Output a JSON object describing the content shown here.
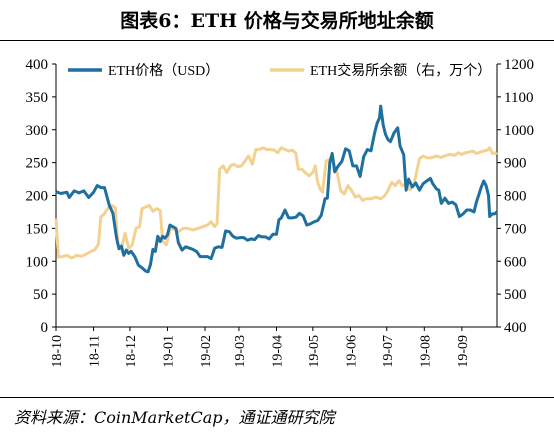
{
  "figure": {
    "title": "图表6：ETH 价格与交易所地址余额",
    "source": "资料来源：CoinMarketCap，通证通研究院"
  },
  "chart_data": {
    "type": "line",
    "title": "图表6：ETH 价格与交易所地址余额",
    "x_ticks": [
      "18-10",
      "18-11",
      "18-12",
      "19-01",
      "19-02",
      "19-03",
      "19-04",
      "19-05",
      "19-06",
      "19-07",
      "19-08",
      "19-09"
    ],
    "x_range": [
      "2018-10-01",
      "2019-09-30"
    ],
    "y_left": {
      "range": [
        0,
        400
      ],
      "ticks": [
        0,
        50,
        100,
        150,
        200,
        250,
        300,
        350,
        400
      ]
    },
    "y_right": {
      "range": [
        400,
        1200
      ],
      "ticks": [
        400,
        500,
        600,
        700,
        800,
        900,
        1000,
        1100,
        1200
      ]
    },
    "grid": false,
    "legend": "top",
    "series": [
      {
        "name": "ETH价格（USD）",
        "axis": "left",
        "color": "#1f6f9f",
        "points": [
          [
            "2018-10-01",
            206
          ],
          [
            "2018-10-05",
            203
          ],
          [
            "2018-10-10",
            205
          ],
          [
            "2018-10-12",
            197
          ],
          [
            "2018-10-16",
            207
          ],
          [
            "2018-10-20",
            204
          ],
          [
            "2018-10-24",
            207
          ],
          [
            "2018-10-28",
            197
          ],
          [
            "2018-11-01",
            205
          ],
          [
            "2018-11-04",
            215
          ],
          [
            "2018-11-07",
            212
          ],
          [
            "2018-11-10",
            212
          ],
          [
            "2018-11-14",
            185
          ],
          [
            "2018-11-17",
            173
          ],
          [
            "2018-11-20",
            135
          ],
          [
            "2018-11-22",
            119
          ],
          [
            "2018-11-24",
            123
          ],
          [
            "2018-11-26",
            109
          ],
          [
            "2018-11-28",
            117
          ],
          [
            "2018-11-30",
            112
          ],
          [
            "2018-12-02",
            115
          ],
          [
            "2018-12-05",
            107
          ],
          [
            "2018-12-08",
            94
          ],
          [
            "2018-12-11",
            90
          ],
          [
            "2018-12-14",
            85
          ],
          [
            "2018-12-16",
            84
          ],
          [
            "2018-12-18",
            95
          ],
          [
            "2018-12-20",
            118
          ],
          [
            "2018-12-22",
            115
          ],
          [
            "2018-12-24",
            138
          ],
          [
            "2018-12-26",
            130
          ],
          [
            "2018-12-28",
            138
          ],
          [
            "2018-12-30",
            135
          ],
          [
            "2019-01-01",
            140
          ],
          [
            "2019-01-03",
            155
          ],
          [
            "2019-01-05",
            153
          ],
          [
            "2019-01-08",
            150
          ],
          [
            "2019-01-10",
            128
          ],
          [
            "2019-01-13",
            117
          ],
          [
            "2019-01-16",
            122
          ],
          [
            "2019-01-19",
            120
          ],
          [
            "2019-01-22",
            118
          ],
          [
            "2019-01-25",
            115
          ],
          [
            "2019-01-28",
            107
          ],
          [
            "2019-01-31",
            107
          ],
          [
            "2019-02-03",
            107
          ],
          [
            "2019-02-06",
            104
          ],
          [
            "2019-02-09",
            120
          ],
          [
            "2019-02-12",
            122
          ],
          [
            "2019-02-15",
            121
          ],
          [
            "2019-02-18",
            146
          ],
          [
            "2019-02-21",
            145
          ],
          [
            "2019-02-24",
            138
          ],
          [
            "2019-02-27",
            135
          ],
          [
            "2019-03-02",
            136
          ],
          [
            "2019-03-05",
            136
          ],
          [
            "2019-03-08",
            132
          ],
          [
            "2019-03-11",
            134
          ],
          [
            "2019-03-14",
            133
          ],
          [
            "2019-03-17",
            139
          ],
          [
            "2019-03-20",
            137
          ],
          [
            "2019-03-23",
            137
          ],
          [
            "2019-03-26",
            134
          ],
          [
            "2019-03-29",
            141
          ],
          [
            "2019-04-01",
            141
          ],
          [
            "2019-04-03",
            163
          ],
          [
            "2019-04-05",
            166
          ],
          [
            "2019-04-08",
            178
          ],
          [
            "2019-04-11",
            166
          ],
          [
            "2019-04-14",
            166
          ],
          [
            "2019-04-17",
            167
          ],
          [
            "2019-04-20",
            173
          ],
          [
            "2019-04-23",
            169
          ],
          [
            "2019-04-26",
            155
          ],
          [
            "2019-04-29",
            157
          ],
          [
            "2019-05-02",
            160
          ],
          [
            "2019-05-05",
            162
          ],
          [
            "2019-05-08",
            170
          ],
          [
            "2019-05-11",
            195
          ],
          [
            "2019-05-13",
            196
          ],
          [
            "2019-05-15",
            250
          ],
          [
            "2019-05-17",
            264
          ],
          [
            "2019-05-19",
            236
          ],
          [
            "2019-05-22",
            245
          ],
          [
            "2019-05-25",
            252
          ],
          [
            "2019-05-28",
            271
          ],
          [
            "2019-05-31",
            268
          ],
          [
            "2019-06-03",
            245
          ],
          [
            "2019-06-06",
            245
          ],
          [
            "2019-06-09",
            229
          ],
          [
            "2019-06-12",
            259
          ],
          [
            "2019-06-15",
            270
          ],
          [
            "2019-06-18",
            268
          ],
          [
            "2019-06-21",
            295
          ],
          [
            "2019-06-23",
            310
          ],
          [
            "2019-06-25",
            318
          ],
          [
            "2019-06-26",
            336
          ],
          [
            "2019-06-28",
            308
          ],
          [
            "2019-06-30",
            293
          ],
          [
            "2019-07-02",
            285
          ],
          [
            "2019-07-04",
            282
          ],
          [
            "2019-07-07",
            295
          ],
          [
            "2019-07-10",
            303
          ],
          [
            "2019-07-12",
            275
          ],
          [
            "2019-07-15",
            262
          ],
          [
            "2019-07-17",
            208
          ],
          [
            "2019-07-19",
            225
          ],
          [
            "2019-07-22",
            213
          ],
          [
            "2019-07-25",
            219
          ],
          [
            "2019-07-28",
            208
          ],
          [
            "2019-07-31",
            218
          ],
          [
            "2019-08-03",
            222
          ],
          [
            "2019-08-06",
            226
          ],
          [
            "2019-08-08",
            218
          ],
          [
            "2019-08-11",
            210
          ],
          [
            "2019-08-13",
            208
          ],
          [
            "2019-08-15",
            188
          ],
          [
            "2019-08-18",
            196
          ],
          [
            "2019-08-21",
            188
          ],
          [
            "2019-08-24",
            190
          ],
          [
            "2019-08-27",
            186
          ],
          [
            "2019-08-30",
            168
          ],
          [
            "2019-09-02",
            172
          ],
          [
            "2019-09-05",
            178
          ],
          [
            "2019-09-08",
            178
          ],
          [
            "2019-09-11",
            175
          ],
          [
            "2019-09-13",
            190
          ],
          [
            "2019-09-15",
            201
          ],
          [
            "2019-09-17",
            213
          ],
          [
            "2019-09-19",
            222
          ],
          [
            "2019-09-21",
            215
          ],
          [
            "2019-09-23",
            200
          ],
          [
            "2019-09-24",
            168
          ],
          [
            "2019-09-26",
            172
          ],
          [
            "2019-09-28",
            172
          ],
          [
            "2019-09-30",
            175
          ]
        ]
      },
      {
        "name": "ETH交易所余额（右，万个）",
        "axis": "right",
        "color": "#f3d291",
        "points": [
          [
            "2018-10-01",
            730
          ],
          [
            "2018-10-03",
            612
          ],
          [
            "2018-10-07",
            615
          ],
          [
            "2018-10-10",
            618
          ],
          [
            "2018-10-14",
            610
          ],
          [
            "2018-10-18",
            618
          ],
          [
            "2018-10-22",
            615
          ],
          [
            "2018-10-26",
            622
          ],
          [
            "2018-10-30",
            630
          ],
          [
            "2018-11-02",
            635
          ],
          [
            "2018-11-05",
            652
          ],
          [
            "2018-11-07",
            735
          ],
          [
            "2018-11-10",
            745
          ],
          [
            "2018-11-13",
            762
          ],
          [
            "2018-11-16",
            770
          ],
          [
            "2018-11-19",
            762
          ],
          [
            "2018-11-21",
            650
          ],
          [
            "2018-11-24",
            638
          ],
          [
            "2018-11-27",
            685
          ],
          [
            "2018-11-30",
            640
          ],
          [
            "2018-12-03",
            650
          ],
          [
            "2018-12-06",
            700
          ],
          [
            "2018-12-09",
            705
          ],
          [
            "2018-12-11",
            760
          ],
          [
            "2018-12-14",
            765
          ],
          [
            "2018-12-17",
            770
          ],
          [
            "2018-12-20",
            752
          ],
          [
            "2018-12-23",
            760
          ],
          [
            "2018-12-26",
            755
          ],
          [
            "2018-12-28",
            660
          ],
          [
            "2018-12-31",
            650
          ],
          [
            "2019-01-03",
            695
          ],
          [
            "2019-01-06",
            700
          ],
          [
            "2019-01-10",
            690
          ],
          [
            "2019-01-14",
            700
          ],
          [
            "2019-01-18",
            700
          ],
          [
            "2019-01-22",
            695
          ],
          [
            "2019-01-26",
            700
          ],
          [
            "2019-01-30",
            705
          ],
          [
            "2019-02-03",
            710
          ],
          [
            "2019-02-06",
            720
          ],
          [
            "2019-02-09",
            705
          ],
          [
            "2019-02-11",
            715
          ],
          [
            "2019-02-13",
            880
          ],
          [
            "2019-02-16",
            890
          ],
          [
            "2019-02-19",
            870
          ],
          [
            "2019-02-22",
            890
          ],
          [
            "2019-02-25",
            895
          ],
          [
            "2019-02-28",
            888
          ],
          [
            "2019-03-03",
            890
          ],
          [
            "2019-03-06",
            905
          ],
          [
            "2019-03-09",
            920
          ],
          [
            "2019-03-12",
            895
          ],
          [
            "2019-03-15",
            940
          ],
          [
            "2019-03-18",
            940
          ],
          [
            "2019-03-21",
            945
          ],
          [
            "2019-03-24",
            940
          ],
          [
            "2019-03-27",
            940
          ],
          [
            "2019-03-30",
            938
          ],
          [
            "2019-04-02",
            930
          ],
          [
            "2019-04-05",
            945
          ],
          [
            "2019-04-08",
            940
          ],
          [
            "2019-04-11",
            935
          ],
          [
            "2019-04-14",
            938
          ],
          [
            "2019-04-17",
            928
          ],
          [
            "2019-04-19",
            880
          ],
          [
            "2019-04-22",
            880
          ],
          [
            "2019-04-25",
            868
          ],
          [
            "2019-04-28",
            860
          ],
          [
            "2019-05-01",
            870
          ],
          [
            "2019-05-03",
            890
          ],
          [
            "2019-05-05",
            840
          ],
          [
            "2019-05-07",
            820
          ],
          [
            "2019-05-09",
            810
          ],
          [
            "2019-05-12",
            905
          ],
          [
            "2019-05-15",
            910
          ],
          [
            "2019-05-18",
            900
          ],
          [
            "2019-05-21",
            870
          ],
          [
            "2019-05-24",
            815
          ],
          [
            "2019-05-27",
            805
          ],
          [
            "2019-05-30",
            830
          ],
          [
            "2019-06-02",
            815
          ],
          [
            "2019-06-05",
            795
          ],
          [
            "2019-06-08",
            800
          ],
          [
            "2019-06-11",
            785
          ],
          [
            "2019-06-14",
            790
          ],
          [
            "2019-06-18",
            790
          ],
          [
            "2019-06-22",
            795
          ],
          [
            "2019-06-26",
            790
          ],
          [
            "2019-06-29",
            798
          ],
          [
            "2019-07-02",
            815
          ],
          [
            "2019-07-05",
            840
          ],
          [
            "2019-07-08",
            830
          ],
          [
            "2019-07-11",
            845
          ],
          [
            "2019-07-14",
            830
          ],
          [
            "2019-07-17",
            835
          ],
          [
            "2019-07-20",
            818
          ],
          [
            "2019-07-23",
            830
          ],
          [
            "2019-07-25",
            860
          ],
          [
            "2019-07-28",
            912
          ],
          [
            "2019-07-31",
            920
          ],
          [
            "2019-08-03",
            915
          ],
          [
            "2019-08-07",
            915
          ],
          [
            "2019-08-11",
            920
          ],
          [
            "2019-08-15",
            916
          ],
          [
            "2019-08-19",
            922
          ],
          [
            "2019-08-23",
            925
          ],
          [
            "2019-08-26",
            922
          ],
          [
            "2019-08-29",
            930
          ],
          [
            "2019-09-01",
            925
          ],
          [
            "2019-09-04",
            930
          ],
          [
            "2019-09-07",
            932
          ],
          [
            "2019-09-10",
            935
          ],
          [
            "2019-09-13",
            928
          ],
          [
            "2019-09-16",
            932
          ],
          [
            "2019-09-19",
            935
          ],
          [
            "2019-09-22",
            938
          ],
          [
            "2019-09-24",
            945
          ],
          [
            "2019-09-26",
            928
          ],
          [
            "2019-09-28",
            930
          ],
          [
            "2019-09-30",
            925
          ]
        ]
      }
    ]
  }
}
